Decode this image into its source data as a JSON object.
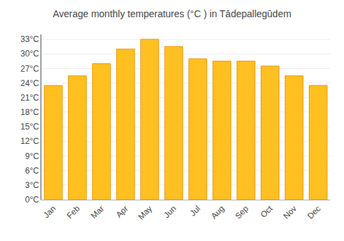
{
  "chart_data": {
    "type": "bar",
    "title": "Average monthly temperatures (°C ) in Tādepallegūdem",
    "categories": [
      "Jan",
      "Feb",
      "Mar",
      "Apr",
      "May",
      "Jun",
      "Jul",
      "Aug",
      "Sep",
      "Oct",
      "Nov",
      "Dec"
    ],
    "values": [
      23.5,
      25.5,
      28.0,
      31.0,
      33.0,
      31.5,
      29.0,
      28.5,
      28.5,
      27.5,
      25.5,
      23.5
    ],
    "color": "#FFC020",
    "ylim": [
      0,
      34
    ],
    "yticks": [
      {
        "value": 0,
        "label": "0°C"
      },
      {
        "value": 3,
        "label": "3°C"
      },
      {
        "value": 6,
        "label": "6°C"
      },
      {
        "value": 9,
        "label": "9°C"
      },
      {
        "value": 12,
        "label": "12°C"
      },
      {
        "value": 15,
        "label": "15°C"
      },
      {
        "value": 18,
        "label": "18°C"
      },
      {
        "value": 21,
        "label": "21°C"
      },
      {
        "value": 24,
        "label": "24°C"
      },
      {
        "value": 27,
        "label": "27°C"
      },
      {
        "value": 30,
        "label": "30°C"
      },
      {
        "value": 33,
        "label": "33°C"
      }
    ],
    "grid": true
  }
}
